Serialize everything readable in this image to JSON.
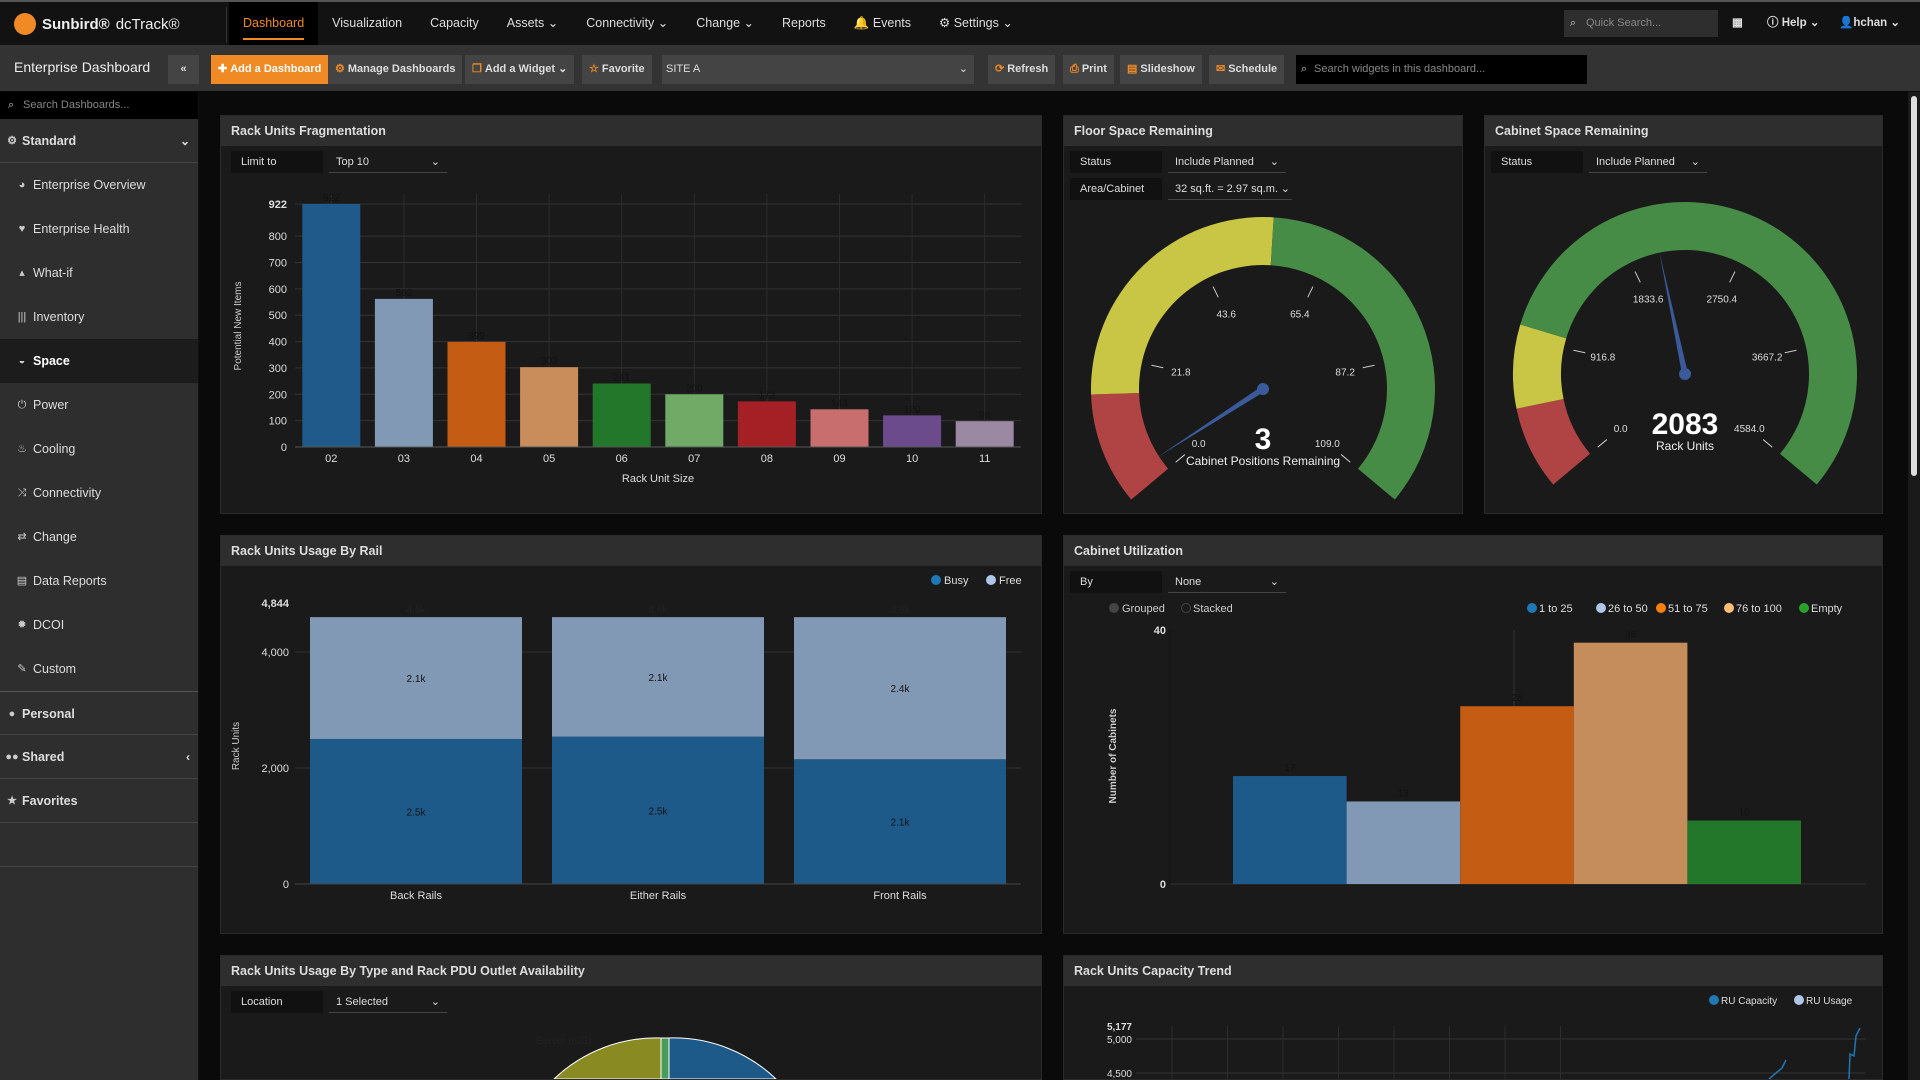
{
  "brand": {
    "name": "Sunbird®",
    "product": "dcTrack®"
  },
  "nav": {
    "items": [
      "Dashboard",
      "Visualization",
      "Capacity",
      "Assets ⌄",
      "Connectivity ⌄",
      "Change ⌄",
      "Reports",
      "Events",
      "Settings ⌄"
    ],
    "active": "Dashboard",
    "quick_search_placeholder": "Quick Search...",
    "help": "Help ⌄",
    "user": "hchan ⌄"
  },
  "toolbar": {
    "title": "Enterprise Dashboard",
    "collapse": "«",
    "add_dashboard": "Add a Dashboard",
    "manage": "Manage Dashboards",
    "add_widget": "Add a Widget ⌄",
    "favorite": "Favorite",
    "site": "SITE A",
    "refresh": "Refresh",
    "print": "Print",
    "slideshow": "Slideshow",
    "schedule": "Schedule",
    "widget_search_placeholder": "Search widgets in this dashboard..."
  },
  "sidebar": {
    "search_placeholder": "Search Dashboards...",
    "standard": "Standard",
    "items": [
      {
        "label": "Enterprise Overview",
        "icon": "globe-icon"
      },
      {
        "label": "Enterprise Health",
        "icon": "heartbeat-icon"
      },
      {
        "label": "What-if",
        "icon": "thumbs-up-icon"
      },
      {
        "label": "Inventory",
        "icon": "barcode-icon"
      },
      {
        "label": "Space",
        "icon": "dashboard-icon",
        "active": true
      },
      {
        "label": "Power",
        "icon": "power-icon"
      },
      {
        "label": "Cooling",
        "icon": "thermometer-icon"
      },
      {
        "label": "Connectivity",
        "icon": "random-icon"
      },
      {
        "label": "Change",
        "icon": "exchange-icon"
      },
      {
        "label": "Data Reports",
        "icon": "list-icon"
      },
      {
        "label": "DCOI",
        "icon": "gear-icon"
      },
      {
        "label": "Custom",
        "icon": "wrench-icon"
      }
    ],
    "personal": "Personal",
    "shared": "Shared",
    "favorites": "Favorites"
  },
  "widgets": {
    "frag": {
      "title": "Rack Units Fragmentation",
      "limit_label": "Limit to",
      "limit_value": "Top 10"
    },
    "floor": {
      "title": "Floor Space Remaining",
      "status_label": "Status",
      "status_value": "Include Planned",
      "area_label": "Area/Cabinet",
      "area_value": "32 sq.ft. = 2.97 sq.m."
    },
    "cabinet": {
      "title": "Cabinet Space Remaining",
      "status_label": "Status",
      "status_value": "Include Planned"
    },
    "rail": {
      "title": "Rack Units Usage By Rail"
    },
    "util": {
      "title": "Cabinet Utilization",
      "by_label": "By",
      "by_value": "None",
      "grouped": "Grouped",
      "stacked": "Stacked"
    },
    "pdu": {
      "title": "Rack Units Usage By Type and Rack PDU Outlet Availability",
      "location_label": "Location",
      "location_value": "1 Selected",
      "slice_label": "Server (623)"
    },
    "trend": {
      "title": "Rack Units Capacity Trend"
    }
  },
  "chart_data": [
    {
      "id": "frag",
      "type": "bar",
      "categories": [
        "02",
        "03",
        "04",
        "05",
        "06",
        "07",
        "08",
        "09",
        "10",
        "11"
      ],
      "values": [
        922,
        562,
        399,
        303,
        241,
        200,
        173,
        143,
        120,
        98
      ],
      "colors": [
        "#1f5a8a",
        "#8299b5",
        "#c55c13",
        "#c98d5b",
        "#23772a",
        "#71aa66",
        "#a52024",
        "#c86e6e",
        "#6c4b8d",
        "#9b88a3"
      ],
      "xlabel": "Rack Unit Size",
      "ylabel": "Potential New Items",
      "yticks": [
        0,
        100,
        200,
        300,
        400,
        500,
        600,
        700,
        800,
        922
      ],
      "ylim": [
        0,
        922
      ],
      "grid": true
    },
    {
      "id": "floor",
      "type": "gauge",
      "value": 3,
      "min": 0,
      "max": 109,
      "ticks": [
        "0.0",
        "21.8",
        "43.6",
        "65.4",
        "87.2",
        "109.0"
      ],
      "bands": [
        {
          "to": 16,
          "color": "#b04444"
        },
        {
          "to": 56,
          "color": "#c8c644"
        },
        {
          "to": 109,
          "color": "#468c46"
        }
      ],
      "label": "Cabinet Positions Remaining",
      "display": "3"
    },
    {
      "id": "cabinet",
      "type": "gauge",
      "value": 2083,
      "min": 0,
      "max": 4584,
      "ticks": [
        "0.0",
        "916.8",
        "1833.6",
        "2750.4",
        "3667.2",
        "4584.0"
      ],
      "bands": [
        {
          "to": 500,
          "color": "#b04444"
        },
        {
          "to": 1000,
          "color": "#c8c644"
        },
        {
          "to": 4584,
          "color": "#468c46"
        }
      ],
      "label": "Rack Units",
      "display": "2083"
    },
    {
      "id": "rail",
      "type": "bar",
      "stacked": true,
      "categories": [
        "Back Rails",
        "Either Rails",
        "Front Rails"
      ],
      "series": [
        {
          "name": "Busy",
          "values": [
            2500,
            2540,
            2150
          ],
          "labels": [
            "2.5k",
            "2.5k",
            "2.1k"
          ],
          "color": "#1d5a8a"
        },
        {
          "name": "Free",
          "values": [
            2100,
            2060,
            2450
          ],
          "labels": [
            "2.1k",
            "2.1k",
            "2.4k"
          ],
          "color": "#8299b5"
        }
      ],
      "totals": [
        "4.6k",
        "4.6k",
        "4.6k"
      ],
      "ylabel": "Rack Units",
      "yticks": [
        "0",
        "2,000",
        "4,000",
        "4,844"
      ],
      "ylim": [
        0,
        4844
      ],
      "legend": "top-right"
    },
    {
      "id": "util",
      "type": "bar",
      "categories": [
        "1 to 25",
        "26 to 50",
        "51 to 75",
        "76 to 100",
        "Empty"
      ],
      "values": [
        17,
        13,
        28,
        38,
        10
      ],
      "colors": [
        "#1d5a8a",
        "#8299b5",
        "#c55c13",
        "#c58d5b",
        "#23772a"
      ],
      "legend_colors": [
        "#1f77b4",
        "#aec7e8",
        "#ff7f0e",
        "#ffbb78",
        "#2ca02c"
      ],
      "ylabel": "Number of Cabinets",
      "yticks": [
        0,
        40
      ],
      "ylim": [
        0,
        40
      ],
      "legend": "top-right"
    },
    {
      "id": "trend",
      "type": "line",
      "series": [
        {
          "name": "RU Capacity",
          "color": "#1f77b4"
        },
        {
          "name": "RU Usage",
          "color": "#aec7e8"
        }
      ],
      "yticks": [
        "4,500",
        "5,000",
        "5,177"
      ],
      "legend": "top-right"
    }
  ]
}
